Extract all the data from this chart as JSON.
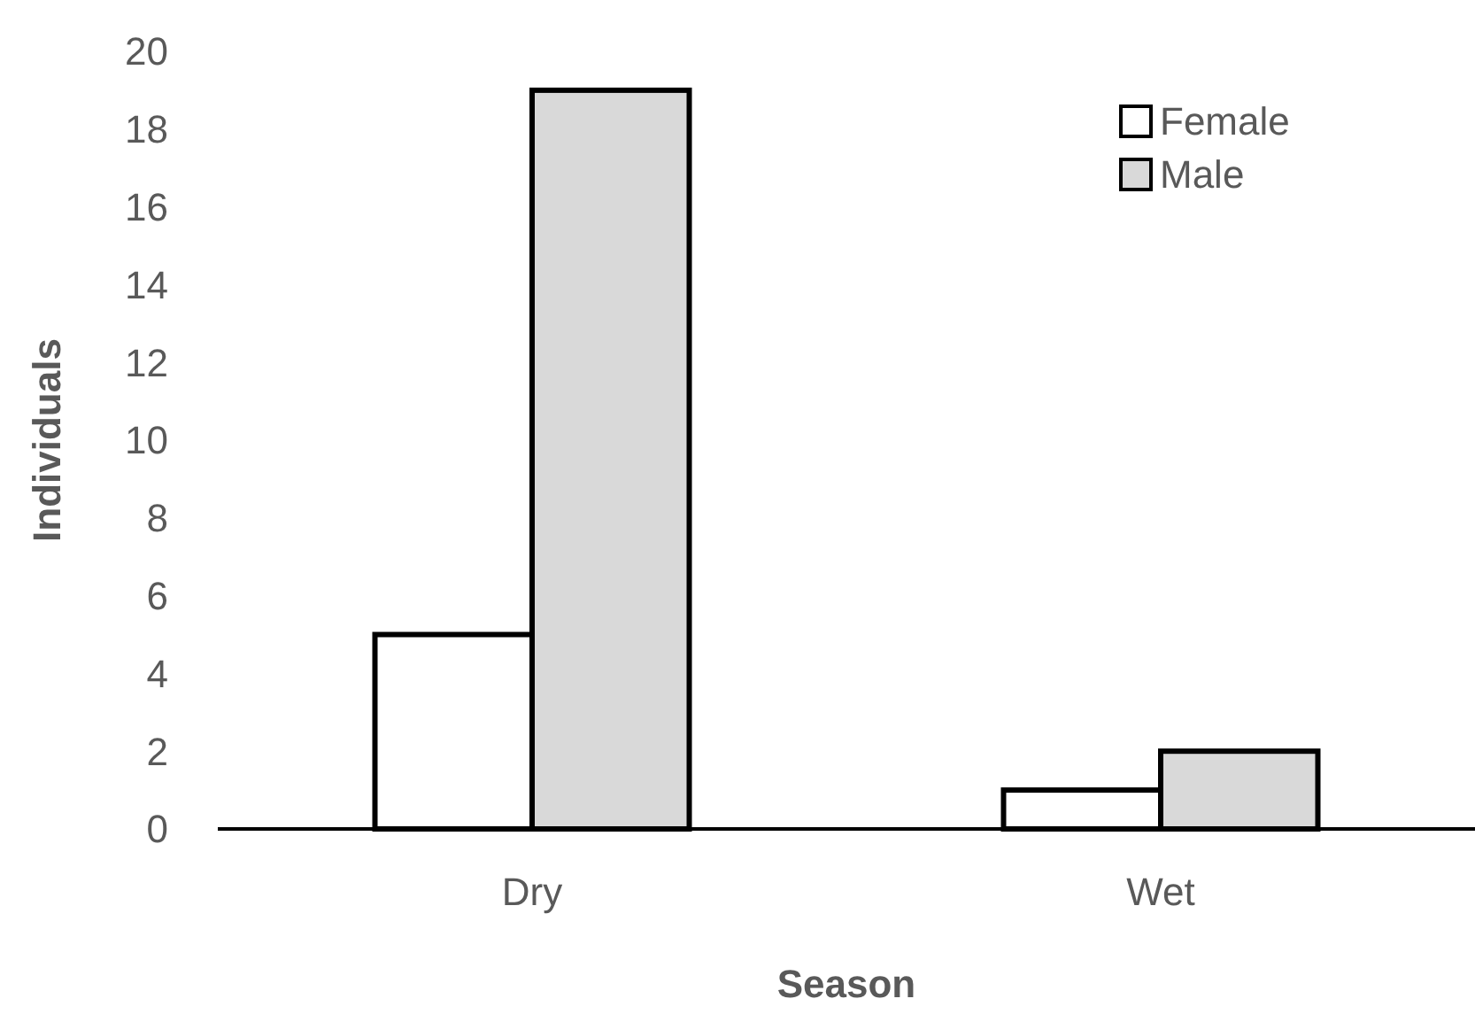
{
  "chart_data": {
    "type": "bar",
    "xlabel": "Season",
    "ylabel": "Individuals",
    "categories": [
      "Dry",
      "Wet"
    ],
    "series": [
      {
        "name": "Female",
        "color": "#ffffff",
        "values": [
          5,
          1
        ]
      },
      {
        "name": "Male",
        "color": "#d9d9d9",
        "values": [
          19,
          2
        ]
      }
    ],
    "ylim": [
      0,
      20
    ],
    "yticks": [
      0,
      2,
      4,
      6,
      8,
      10,
      12,
      14,
      16,
      18,
      20
    ],
    "grid": false,
    "legend": "top right"
  }
}
